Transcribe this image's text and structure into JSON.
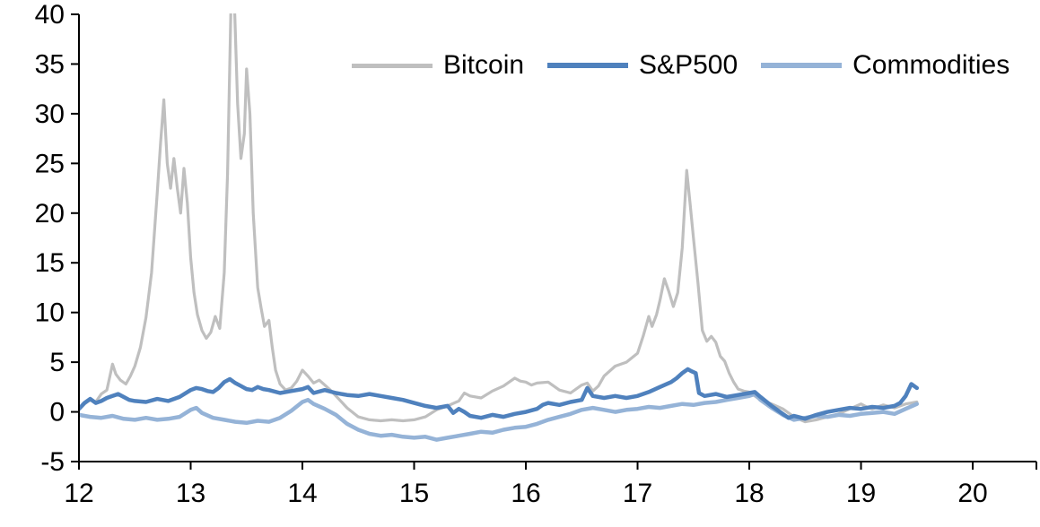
{
  "chart_data": {
    "type": "line",
    "title": "",
    "xlabel": "",
    "ylabel": "",
    "xlim": [
      12,
      20.57
    ],
    "ylim": [
      -5,
      40
    ],
    "x_ticks": [
      12,
      13,
      14,
      15,
      16,
      17,
      18,
      19,
      20
    ],
    "y_ticks": [
      -5,
      0,
      5,
      10,
      15,
      20,
      25,
      30,
      35,
      40
    ],
    "grid": false,
    "legend_position": "top-center",
    "axis_color": "#000000",
    "background_color": "#ffffff",
    "series": [
      {
        "name": "Bitcoin",
        "color": "#bfbfbf",
        "line_width": 3.2,
        "legend_swatch_height": 5,
        "points": [
          [
            12.0,
            0.2
          ],
          [
            12.05,
            0.8
          ],
          [
            12.1,
            1.2
          ],
          [
            12.15,
            1.0
          ],
          [
            12.2,
            1.8
          ],
          [
            12.25,
            2.2
          ],
          [
            12.3,
            4.8
          ],
          [
            12.33,
            3.8
          ],
          [
            12.37,
            3.2
          ],
          [
            12.42,
            2.8
          ],
          [
            12.46,
            3.6
          ],
          [
            12.5,
            4.6
          ],
          [
            12.55,
            6.5
          ],
          [
            12.6,
            9.5
          ],
          [
            12.65,
            14.0
          ],
          [
            12.7,
            22.0
          ],
          [
            12.73,
            27.0
          ],
          [
            12.76,
            31.4
          ],
          [
            12.79,
            25.0
          ],
          [
            12.82,
            22.5
          ],
          [
            12.85,
            25.5
          ],
          [
            12.88,
            22.5
          ],
          [
            12.91,
            20.0
          ],
          [
            12.94,
            24.5
          ],
          [
            12.97,
            21.0
          ],
          [
            13.0,
            15.5
          ],
          [
            13.03,
            12.0
          ],
          [
            13.06,
            9.8
          ],
          [
            13.1,
            8.2
          ],
          [
            13.14,
            7.4
          ],
          [
            13.18,
            8.0
          ],
          [
            13.22,
            9.6
          ],
          [
            13.26,
            8.4
          ],
          [
            13.3,
            14.0
          ],
          [
            13.33,
            24.0
          ],
          [
            13.36,
            40.5
          ],
          [
            13.39,
            41.5
          ],
          [
            13.42,
            31.0
          ],
          [
            13.45,
            25.5
          ],
          [
            13.48,
            28.0
          ],
          [
            13.5,
            34.5
          ],
          [
            13.53,
            30.0
          ],
          [
            13.56,
            20.0
          ],
          [
            13.6,
            12.5
          ],
          [
            13.63,
            10.5
          ],
          [
            13.66,
            8.6
          ],
          [
            13.7,
            9.2
          ],
          [
            13.73,
            6.5
          ],
          [
            13.76,
            4.2
          ],
          [
            13.8,
            2.8
          ],
          [
            13.85,
            2.2
          ],
          [
            13.9,
            2.4
          ],
          [
            13.95,
            3.1
          ],
          [
            14.0,
            4.2
          ],
          [
            14.05,
            3.6
          ],
          [
            14.1,
            2.9
          ],
          [
            14.15,
            3.2
          ],
          [
            14.2,
            2.7
          ],
          [
            14.25,
            2.2
          ],
          [
            14.3,
            1.6
          ],
          [
            14.4,
            0.4
          ],
          [
            14.5,
            -0.5
          ],
          [
            14.6,
            -0.8
          ],
          [
            14.7,
            -0.9
          ],
          [
            14.8,
            -0.8
          ],
          [
            14.9,
            -0.9
          ],
          [
            15.0,
            -0.8
          ],
          [
            15.1,
            -0.5
          ],
          [
            15.2,
            0.2
          ],
          [
            15.3,
            0.6
          ],
          [
            15.4,
            1.1
          ],
          [
            15.45,
            1.9
          ],
          [
            15.5,
            1.6
          ],
          [
            15.6,
            1.4
          ],
          [
            15.7,
            2.1
          ],
          [
            15.8,
            2.6
          ],
          [
            15.9,
            3.4
          ],
          [
            15.95,
            3.1
          ],
          [
            16.0,
            3.0
          ],
          [
            16.05,
            2.7
          ],
          [
            16.1,
            2.9
          ],
          [
            16.2,
            3.0
          ],
          [
            16.3,
            2.2
          ],
          [
            16.4,
            1.9
          ],
          [
            16.5,
            2.7
          ],
          [
            16.55,
            2.9
          ],
          [
            16.6,
            2.1
          ],
          [
            16.65,
            2.6
          ],
          [
            16.7,
            3.6
          ],
          [
            16.8,
            4.6
          ],
          [
            16.9,
            5.0
          ],
          [
            17.0,
            5.9
          ],
          [
            17.05,
            7.6
          ],
          [
            17.1,
            9.6
          ],
          [
            17.13,
            8.6
          ],
          [
            17.17,
            9.8
          ],
          [
            17.2,
            11.2
          ],
          [
            17.24,
            13.4
          ],
          [
            17.28,
            12.1
          ],
          [
            17.32,
            10.6
          ],
          [
            17.36,
            12.0
          ],
          [
            17.4,
            16.5
          ],
          [
            17.44,
            24.3
          ],
          [
            17.47,
            21.0
          ],
          [
            17.5,
            17.5
          ],
          [
            17.54,
            13.0
          ],
          [
            17.58,
            8.2
          ],
          [
            17.62,
            7.1
          ],
          [
            17.66,
            7.6
          ],
          [
            17.7,
            7.0
          ],
          [
            17.74,
            5.6
          ],
          [
            17.78,
            5.1
          ],
          [
            17.82,
            3.9
          ],
          [
            17.86,
            3.0
          ],
          [
            17.9,
            2.3
          ],
          [
            17.95,
            2.1
          ],
          [
            18.0,
            2.0
          ],
          [
            18.05,
            1.6
          ],
          [
            18.1,
            1.2
          ],
          [
            18.2,
            0.8
          ],
          [
            18.3,
            0.3
          ],
          [
            18.4,
            -0.5
          ],
          [
            18.5,
            -1.0
          ],
          [
            18.6,
            -0.8
          ],
          [
            18.7,
            -0.5
          ],
          [
            18.8,
            -0.2
          ],
          [
            18.9,
            0.3
          ],
          [
            19.0,
            0.8
          ],
          [
            19.05,
            0.5
          ],
          [
            19.1,
            0.3
          ],
          [
            19.2,
            0.7
          ],
          [
            19.3,
            0.4
          ],
          [
            19.4,
            0.8
          ],
          [
            19.5,
            1.0
          ]
        ]
      },
      {
        "name": "Commodities",
        "color": "#95b3d7",
        "line_width": 4.5,
        "legend_swatch_height": 6,
        "points": [
          [
            12.0,
            -0.3
          ],
          [
            12.1,
            -0.5
          ],
          [
            12.2,
            -0.6
          ],
          [
            12.3,
            -0.4
          ],
          [
            12.4,
            -0.7
          ],
          [
            12.5,
            -0.8
          ],
          [
            12.6,
            -0.6
          ],
          [
            12.7,
            -0.8
          ],
          [
            12.8,
            -0.7
          ],
          [
            12.9,
            -0.5
          ],
          [
            13.0,
            0.2
          ],
          [
            13.05,
            0.4
          ],
          [
            13.1,
            -0.1
          ],
          [
            13.2,
            -0.6
          ],
          [
            13.3,
            -0.8
          ],
          [
            13.4,
            -1.0
          ],
          [
            13.5,
            -1.1
          ],
          [
            13.6,
            -0.9
          ],
          [
            13.7,
            -1.0
          ],
          [
            13.8,
            -0.6
          ],
          [
            13.9,
            0.1
          ],
          [
            14.0,
            1.0
          ],
          [
            14.05,
            1.2
          ],
          [
            14.1,
            0.8
          ],
          [
            14.2,
            0.3
          ],
          [
            14.3,
            -0.3
          ],
          [
            14.4,
            -1.2
          ],
          [
            14.5,
            -1.8
          ],
          [
            14.6,
            -2.2
          ],
          [
            14.7,
            -2.4
          ],
          [
            14.8,
            -2.3
          ],
          [
            14.9,
            -2.5
          ],
          [
            15.0,
            -2.6
          ],
          [
            15.1,
            -2.5
          ],
          [
            15.2,
            -2.8
          ],
          [
            15.3,
            -2.6
          ],
          [
            15.4,
            -2.4
          ],
          [
            15.5,
            -2.2
          ],
          [
            15.6,
            -2.0
          ],
          [
            15.7,
            -2.1
          ],
          [
            15.8,
            -1.8
          ],
          [
            15.9,
            -1.6
          ],
          [
            16.0,
            -1.5
          ],
          [
            16.1,
            -1.2
          ],
          [
            16.2,
            -0.8
          ],
          [
            16.3,
            -0.5
          ],
          [
            16.4,
            -0.2
          ],
          [
            16.5,
            0.2
          ],
          [
            16.6,
            0.4
          ],
          [
            16.7,
            0.2
          ],
          [
            16.8,
            0.0
          ],
          [
            16.9,
            0.2
          ],
          [
            17.0,
            0.3
          ],
          [
            17.1,
            0.5
          ],
          [
            17.2,
            0.4
          ],
          [
            17.3,
            0.6
          ],
          [
            17.4,
            0.8
          ],
          [
            17.5,
            0.7
          ],
          [
            17.6,
            0.9
          ],
          [
            17.7,
            1.0
          ],
          [
            17.8,
            1.2
          ],
          [
            17.9,
            1.4
          ],
          [
            18.0,
            1.6
          ],
          [
            18.05,
            1.8
          ],
          [
            18.1,
            1.2
          ],
          [
            18.2,
            0.4
          ],
          [
            18.3,
            -0.3
          ],
          [
            18.4,
            -0.8
          ],
          [
            18.5,
            -0.6
          ],
          [
            18.6,
            -0.4
          ],
          [
            18.7,
            -0.5
          ],
          [
            18.8,
            -0.3
          ],
          [
            18.9,
            -0.4
          ],
          [
            19.0,
            -0.2
          ],
          [
            19.1,
            -0.1
          ],
          [
            19.2,
            0.0
          ],
          [
            19.3,
            -0.2
          ],
          [
            19.4,
            0.3
          ],
          [
            19.5,
            0.8
          ]
        ]
      },
      {
        "name": "S&P500",
        "color": "#4f81bd",
        "line_width": 4.5,
        "legend_swatch_height": 6,
        "points": [
          [
            12.0,
            0.3
          ],
          [
            12.05,
            0.9
          ],
          [
            12.1,
            1.3
          ],
          [
            12.15,
            0.9
          ],
          [
            12.2,
            1.1
          ],
          [
            12.25,
            1.4
          ],
          [
            12.3,
            1.6
          ],
          [
            12.35,
            1.8
          ],
          [
            12.4,
            1.5
          ],
          [
            12.45,
            1.2
          ],
          [
            12.5,
            1.1
          ],
          [
            12.6,
            1.0
          ],
          [
            12.7,
            1.3
          ],
          [
            12.8,
            1.1
          ],
          [
            12.9,
            1.5
          ],
          [
            13.0,
            2.2
          ],
          [
            13.05,
            2.4
          ],
          [
            13.1,
            2.3
          ],
          [
            13.15,
            2.1
          ],
          [
            13.2,
            2.0
          ],
          [
            13.25,
            2.4
          ],
          [
            13.3,
            3.0
          ],
          [
            13.35,
            3.3
          ],
          [
            13.4,
            2.9
          ],
          [
            13.45,
            2.6
          ],
          [
            13.5,
            2.3
          ],
          [
            13.55,
            2.2
          ],
          [
            13.6,
            2.5
          ],
          [
            13.65,
            2.3
          ],
          [
            13.7,
            2.2
          ],
          [
            13.8,
            1.9
          ],
          [
            13.9,
            2.1
          ],
          [
            14.0,
            2.3
          ],
          [
            14.05,
            2.5
          ],
          [
            14.1,
            1.9
          ],
          [
            14.2,
            2.2
          ],
          [
            14.3,
            1.9
          ],
          [
            14.4,
            1.7
          ],
          [
            14.5,
            1.6
          ],
          [
            14.6,
            1.8
          ],
          [
            14.7,
            1.6
          ],
          [
            14.8,
            1.4
          ],
          [
            14.9,
            1.2
          ],
          [
            15.0,
            0.9
          ],
          [
            15.1,
            0.6
          ],
          [
            15.2,
            0.4
          ],
          [
            15.3,
            0.6
          ],
          [
            15.35,
            -0.1
          ],
          [
            15.4,
            0.3
          ],
          [
            15.45,
            0.0
          ],
          [
            15.5,
            -0.4
          ],
          [
            15.6,
            -0.6
          ],
          [
            15.7,
            -0.3
          ],
          [
            15.8,
            -0.5
          ],
          [
            15.9,
            -0.2
          ],
          [
            16.0,
            0.0
          ],
          [
            16.1,
            0.3
          ],
          [
            16.15,
            0.7
          ],
          [
            16.2,
            0.9
          ],
          [
            16.3,
            0.7
          ],
          [
            16.4,
            1.0
          ],
          [
            16.5,
            1.2
          ],
          [
            16.55,
            2.4
          ],
          [
            16.6,
            1.6
          ],
          [
            16.7,
            1.4
          ],
          [
            16.8,
            1.6
          ],
          [
            16.9,
            1.4
          ],
          [
            17.0,
            1.6
          ],
          [
            17.1,
            2.0
          ],
          [
            17.2,
            2.5
          ],
          [
            17.3,
            3.0
          ],
          [
            17.35,
            3.4
          ],
          [
            17.4,
            3.9
          ],
          [
            17.45,
            4.3
          ],
          [
            17.48,
            4.1
          ],
          [
            17.52,
            3.9
          ],
          [
            17.55,
            1.9
          ],
          [
            17.6,
            1.6
          ],
          [
            17.7,
            1.8
          ],
          [
            17.8,
            1.5
          ],
          [
            17.9,
            1.7
          ],
          [
            18.0,
            1.9
          ],
          [
            18.05,
            2.0
          ],
          [
            18.1,
            1.5
          ],
          [
            18.2,
            0.6
          ],
          [
            18.3,
            -0.2
          ],
          [
            18.35,
            -0.6
          ],
          [
            18.4,
            -0.4
          ],
          [
            18.5,
            -0.7
          ],
          [
            18.6,
            -0.3
          ],
          [
            18.7,
            0.0
          ],
          [
            18.8,
            0.2
          ],
          [
            18.9,
            0.4
          ],
          [
            19.0,
            0.3
          ],
          [
            19.1,
            0.5
          ],
          [
            19.2,
            0.4
          ],
          [
            19.3,
            0.6
          ],
          [
            19.35,
            0.9
          ],
          [
            19.4,
            1.6
          ],
          [
            19.45,
            2.8
          ],
          [
            19.5,
            2.4
          ]
        ]
      }
    ],
    "legend_order": [
      "Bitcoin",
      "S&P500",
      "Commodities"
    ]
  }
}
